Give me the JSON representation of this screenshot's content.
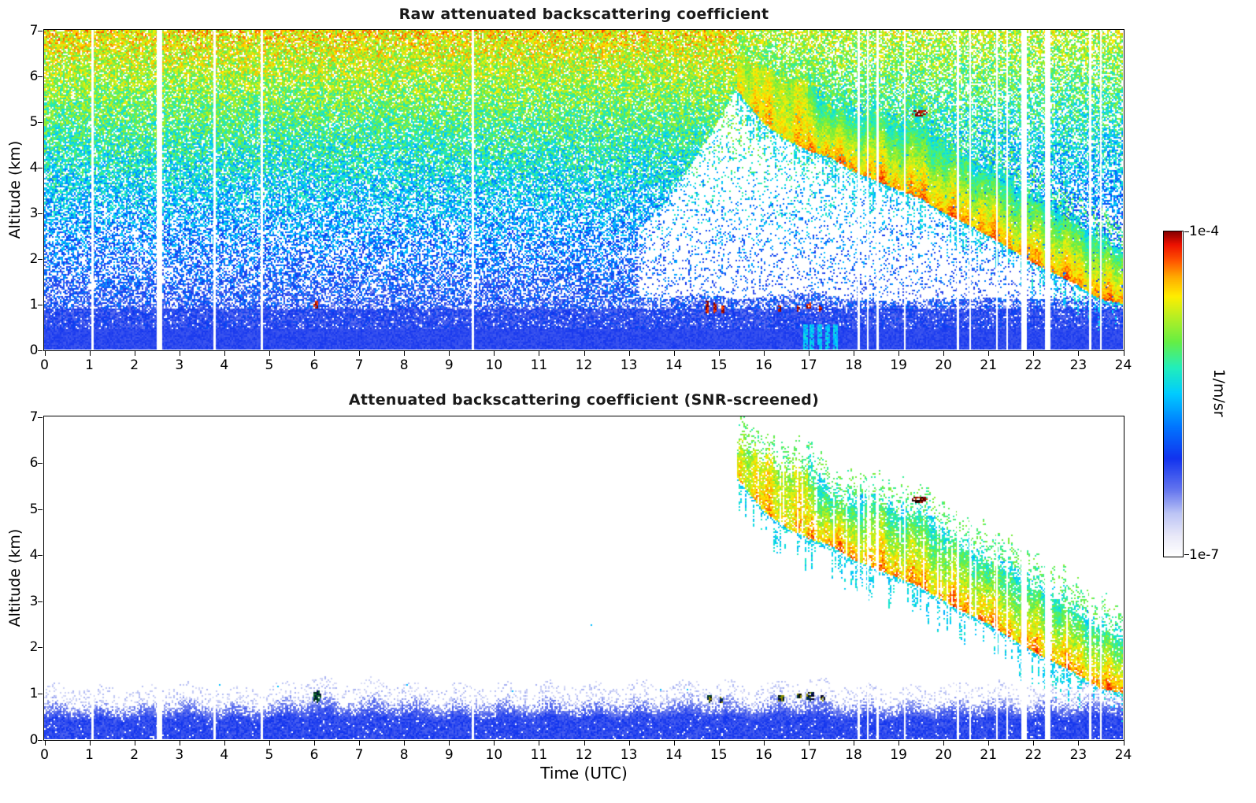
{
  "colorbar": {
    "max_label": "1e-4",
    "min_label": "1e-7",
    "unit": "1/m/sr"
  },
  "colormap_stops": [
    [
      0.0,
      "#ffffff"
    ],
    [
      0.06,
      "#e9e9f8"
    ],
    [
      0.13,
      "#bcc4f5"
    ],
    [
      0.2,
      "#6677ee"
    ],
    [
      0.3,
      "#1133ee"
    ],
    [
      0.4,
      "#0077ff"
    ],
    [
      0.5,
      "#00ccff"
    ],
    [
      0.58,
      "#22eebb"
    ],
    [
      0.66,
      "#66ee44"
    ],
    [
      0.74,
      "#bbee22"
    ],
    [
      0.8,
      "#ffee00"
    ],
    [
      0.86,
      "#ffaa00"
    ],
    [
      0.91,
      "#ff5500"
    ],
    [
      0.96,
      "#ee1100"
    ],
    [
      1.0,
      "#880000"
    ]
  ],
  "chart_data": [
    {
      "type": "heatmap",
      "panel": "top",
      "title": "Raw attenuated backscattering coefficient",
      "xlabel": "",
      "ylabel": "Altitude (km)",
      "xlim": [
        0,
        24
      ],
      "ylim": [
        0,
        7
      ],
      "xticks": [
        0,
        1,
        2,
        3,
        4,
        5,
        6,
        7,
        8,
        9,
        10,
        11,
        12,
        13,
        14,
        15,
        16,
        17,
        18,
        19,
        20,
        21,
        22,
        23,
        24
      ],
      "yticks": [
        0,
        1,
        2,
        3,
        4,
        5,
        6,
        7
      ],
      "value_scale": {
        "min_label": "1e-7",
        "max_label": "1e-4",
        "units": "1/m/sr",
        "mapping": "log"
      },
      "content": "Speckled raw lidar signal: noise level (color) increases with altitude from blue near surface through cyan/green at mid-levels to yellow/orange aloft; solid blue aerosol layer below ~1 km; descending virga/cloud band after 15 UTC; white vertical data gaps"
    },
    {
      "type": "heatmap",
      "panel": "bottom",
      "title": "Attenuated backscattering coefficient (SNR-screened)",
      "xlabel": "Time (UTC)",
      "ylabel": "Altitude (km)",
      "xlim": [
        0,
        24
      ],
      "ylim": [
        0,
        7
      ],
      "xticks": [
        0,
        1,
        2,
        3,
        4,
        5,
        6,
        7,
        8,
        9,
        10,
        11,
        12,
        13,
        14,
        15,
        16,
        17,
        18,
        19,
        20,
        21,
        22,
        23,
        24
      ],
      "yticks": [
        0,
        1,
        2,
        3,
        4,
        5,
        6,
        7
      ],
      "value_scale": {
        "min_label": "1e-7",
        "max_label": "1e-4",
        "units": "1/m/sr",
        "mapping": "log"
      },
      "content": "Same scene with noise screened out: blue boundary layer up to ~0.8-1 km all day; descending precipitation/cloud band from ~6.4 km at 15.5 UTC to ~1 km at 24 UTC; dark-red cloud blob near 19.5 UTC at 5.2 km; white vertical data gaps"
    }
  ],
  "features": {
    "boundary_layer": {
      "hours": [
        0,
        1,
        2,
        3,
        4,
        5,
        6,
        6.5,
        7,
        7.5,
        8,
        9,
        10,
        11,
        12,
        13,
        14,
        14.5,
        15,
        15.5,
        16,
        16.5,
        17,
        17.5,
        18,
        19,
        20,
        21,
        22,
        23,
        23.5,
        24
      ],
      "top_km": [
        0.85,
        0.78,
        0.8,
        0.85,
        0.8,
        0.82,
        1.02,
        0.92,
        0.88,
        0.95,
        0.9,
        0.85,
        0.85,
        0.88,
        0.85,
        0.88,
        0.9,
        0.95,
        0.92,
        0.85,
        0.88,
        0.95,
        1.0,
        0.92,
        0.85,
        0.82,
        0.85,
        0.88,
        0.85,
        0.9,
        0.95,
        1.0
      ]
    },
    "plume": {
      "hours": [
        15.4,
        16,
        16.5,
        17,
        17.5,
        18,
        18.5,
        19,
        19.5,
        20,
        20.5,
        21,
        21.5,
        22,
        22.5,
        23,
        23.5,
        24
      ],
      "top_km": [
        6.45,
        6.2,
        5.9,
        6.0,
        5.4,
        5.2,
        5.35,
        5.0,
        5.05,
        4.6,
        4.3,
        4.0,
        3.8,
        3.45,
        3.2,
        2.9,
        2.55,
        2.3
      ],
      "bottom_km": [
        5.7,
        4.95,
        4.6,
        4.35,
        4.2,
        3.9,
        3.7,
        3.5,
        3.3,
        3.0,
        2.75,
        2.5,
        2.2,
        1.9,
        1.65,
        1.4,
        1.1,
        1.0
      ]
    },
    "data_gaps_utc": [
      {
        "t": 1.08,
        "w": 0.05
      },
      {
        "t": 2.56,
        "w": 0.12
      },
      {
        "t": 3.8,
        "w": 0.05
      },
      {
        "t": 4.85,
        "w": 0.05
      },
      {
        "t": 9.55,
        "w": 0.06
      },
      {
        "t": 18.12,
        "w": 0.05
      },
      {
        "t": 18.32,
        "w": 0.04
      },
      {
        "t": 18.55,
        "w": 0.05
      },
      {
        "t": 19.15,
        "w": 0.04
      },
      {
        "t": 20.32,
        "w": 0.05
      },
      {
        "t": 20.6,
        "w": 0.04
      },
      {
        "t": 21.2,
        "w": 0.04
      },
      {
        "t": 21.42,
        "w": 0.04
      },
      {
        "t": 21.8,
        "w": 0.12
      },
      {
        "t": 22.32,
        "w": 0.12
      },
      {
        "t": 23.28,
        "w": 0.06
      },
      {
        "t": 23.52,
        "w": 0.04
      }
    ],
    "red_spots": [
      {
        "t": 6.03,
        "alt": 1.0,
        "w": 0.12,
        "h": 0.18
      },
      {
        "t": 14.75,
        "alt": 0.95,
        "w": 0.07,
        "h": 0.3
      },
      {
        "t": 14.92,
        "alt": 0.92,
        "w": 0.06,
        "h": 0.25
      },
      {
        "t": 15.08,
        "alt": 0.9,
        "w": 0.06,
        "h": 0.2
      },
      {
        "t": 16.35,
        "alt": 0.92,
        "w": 0.09,
        "h": 0.16
      },
      {
        "t": 16.75,
        "alt": 0.93,
        "w": 0.07,
        "h": 0.14
      },
      {
        "t": 17.0,
        "alt": 0.96,
        "w": 0.12,
        "h": 0.16
      },
      {
        "t": 17.25,
        "alt": 0.92,
        "w": 0.08,
        "h": 0.13
      }
    ],
    "bl_dark_spots": [
      {
        "t": 6.05,
        "alt": 0.95,
        "w": 0.18,
        "h": 0.28
      },
      {
        "t": 14.8,
        "alt": 0.9,
        "w": 0.12,
        "h": 0.18
      },
      {
        "t": 15.05,
        "alt": 0.88,
        "w": 0.1,
        "h": 0.14
      },
      {
        "t": 16.4,
        "alt": 0.9,
        "w": 0.16,
        "h": 0.16
      },
      {
        "t": 16.8,
        "alt": 0.93,
        "w": 0.12,
        "h": 0.14
      },
      {
        "t": 17.05,
        "alt": 0.95,
        "w": 0.2,
        "h": 0.2
      },
      {
        "t": 17.3,
        "alt": 0.9,
        "w": 0.1,
        "h": 0.13
      }
    ],
    "cloud_blob": {
      "t": 19.45,
      "alt": 5.2,
      "w": 0.35,
      "h": 0.14
    },
    "surface_streaks": [
      16.9,
      17.05,
      17.2,
      17.4,
      17.55
    ],
    "isolated_specks": [
      {
        "t": 12.15,
        "alt": 2.5
      },
      {
        "t": 8.05,
        "alt": 1.2
      },
      {
        "t": 10.4,
        "alt": 1.05
      },
      {
        "t": 13.7,
        "alt": 1.1
      },
      {
        "t": 3.9,
        "alt": 1.18
      },
      {
        "t": 14.3,
        "alt": 1.08
      },
      {
        "t": 5.2,
        "alt": 1.15
      }
    ]
  }
}
